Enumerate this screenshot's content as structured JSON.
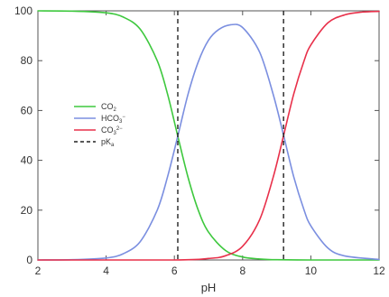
{
  "chart_data": {
    "type": "line",
    "xlabel": "pH",
    "ylabel": "",
    "xlim": [
      2,
      12
    ],
    "ylim": [
      0,
      100
    ],
    "x_ticks": [
      2,
      4,
      6,
      8,
      10,
      12
    ],
    "y_ticks": [
      0,
      20,
      40,
      60,
      80,
      100
    ],
    "x_tick_labels": [
      "2",
      "4",
      "6",
      "8",
      "10",
      "12"
    ],
    "y_tick_labels": [
      "0",
      "20",
      "40",
      "60",
      "80",
      "100"
    ],
    "grid": false,
    "legend_position": "center-left",
    "pKa_values": [
      6.1,
      9.2
    ],
    "series": [
      {
        "name": "CO2",
        "name_main": "CO",
        "name_sub": "2",
        "name_sup": "",
        "color": "#3ec83e",
        "x": [
          2,
          3,
          4,
          4.5,
          5,
          5.5,
          5.8,
          6.1,
          6.4,
          6.7,
          7,
          7.5,
          8,
          8.5,
          9,
          10,
          11,
          12
        ],
        "y": [
          100,
          99.9,
          99.2,
          97.5,
          92.6,
          79.9,
          66.6,
          49.7,
          33.2,
          20,
          11.2,
          3.8,
          1.2,
          0.4,
          0.1,
          0,
          0,
          0
        ]
      },
      {
        "name": "HCO3-",
        "name_main": "HCO",
        "name_sub": "3",
        "name_sup": "−",
        "color": "#7b8fe0",
        "x": [
          2,
          3,
          4,
          4.5,
          5,
          5.5,
          5.8,
          6.1,
          6.4,
          6.7,
          7,
          7.3,
          7.65,
          8,
          8.5,
          8.9,
          9.2,
          9.5,
          9.8,
          10,
          10.5,
          11,
          12
        ],
        "y": [
          0,
          0.1,
          0.8,
          2.5,
          7.4,
          20.1,
          33.4,
          49.7,
          66.5,
          79.5,
          88.2,
          92.5,
          94.4,
          93.3,
          83.4,
          66.3,
          50.1,
          33.3,
          20.1,
          13.7,
          4.8,
          1.6,
          0.2
        ]
      },
      {
        "name": "CO3 2-",
        "name_main": "CO",
        "name_sub": "3",
        "name_sup": "2−",
        "color": "#e8304a",
        "x": [
          2,
          6,
          7,
          7.5,
          8,
          8.5,
          8.9,
          9.2,
          9.5,
          9.8,
          10,
          10.5,
          11,
          11.5,
          12
        ],
        "y": [
          0,
          0,
          0.6,
          1.7,
          5.5,
          16.2,
          33.4,
          49.9,
          66.7,
          79.9,
          86.3,
          95.2,
          98.4,
          99.5,
          99.8
        ]
      }
    ],
    "legend": {
      "entries": [
        {
          "label_main": "CO",
          "label_sub": "2",
          "label_sup": "",
          "style": "solid",
          "color": "#3ec83e"
        },
        {
          "label_main": "HCO",
          "label_sub": "3",
          "label_sup": "−",
          "style": "solid",
          "color": "#7b8fe0"
        },
        {
          "label_main": "CO",
          "label_sub": "3",
          "label_sup": "2−",
          "style": "solid",
          "color": "#e8304a"
        },
        {
          "label_main": "pK",
          "label_sub": "a",
          "label_sup": "",
          "style": "dashed",
          "color": "#222222"
        }
      ]
    }
  }
}
